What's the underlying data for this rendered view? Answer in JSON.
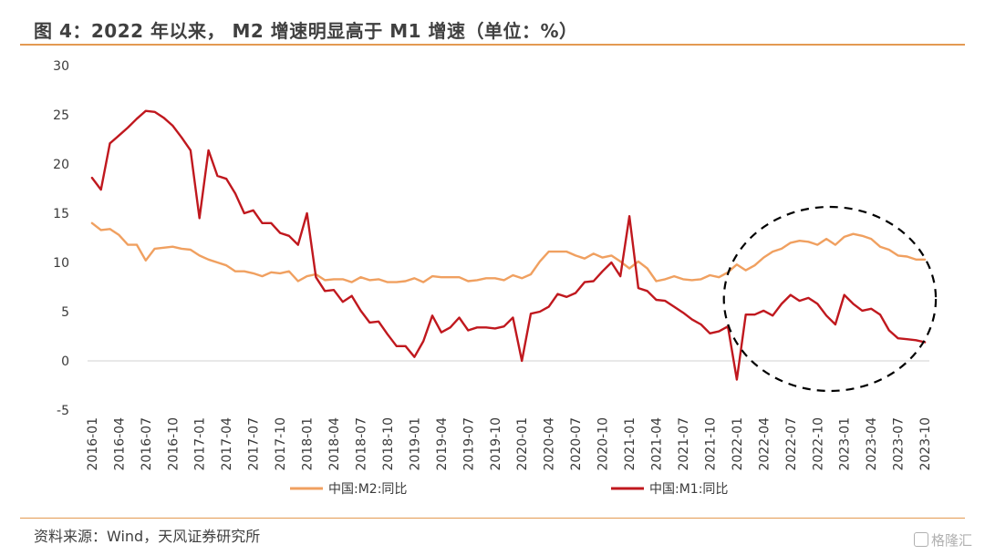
{
  "title": "图 4：2022 年以来， M2 增速明显高于 M1 增速（单位：%）",
  "source": "资料来源：Wind，天风证券研究所",
  "watermark": "格隆汇",
  "colors": {
    "m2": "#F0A060",
    "m1": "#C0181E",
    "accent": "#E39A52",
    "axis": "#d0d0d0",
    "circle": "#000000"
  },
  "chart_data": {
    "type": "line",
    "title": "",
    "xlabel": "",
    "ylabel": "",
    "ylim": [
      -5,
      30
    ],
    "yticks": [
      -5,
      0,
      5,
      10,
      15,
      20,
      25,
      30
    ],
    "grid": false,
    "legend_position": "bottom",
    "x": [
      "2016-01",
      "2016-02",
      "2016-03",
      "2016-04",
      "2016-05",
      "2016-06",
      "2016-07",
      "2016-08",
      "2016-09",
      "2016-10",
      "2016-11",
      "2016-12",
      "2017-01",
      "2017-02",
      "2017-03",
      "2017-04",
      "2017-05",
      "2017-06",
      "2017-07",
      "2017-08",
      "2017-09",
      "2017-10",
      "2017-11",
      "2017-12",
      "2018-01",
      "2018-02",
      "2018-03",
      "2018-04",
      "2018-05",
      "2018-06",
      "2018-07",
      "2018-08",
      "2018-09",
      "2018-10",
      "2018-11",
      "2018-12",
      "2019-01",
      "2019-02",
      "2019-03",
      "2019-04",
      "2019-05",
      "2019-06",
      "2019-07",
      "2019-08",
      "2019-09",
      "2019-10",
      "2019-11",
      "2019-12",
      "2020-01",
      "2020-02",
      "2020-03",
      "2020-04",
      "2020-05",
      "2020-06",
      "2020-07",
      "2020-08",
      "2020-09",
      "2020-10",
      "2020-11",
      "2020-12",
      "2021-01",
      "2021-02",
      "2021-03",
      "2021-04",
      "2021-05",
      "2021-06",
      "2021-07",
      "2021-08",
      "2021-09",
      "2021-10",
      "2021-11",
      "2021-12",
      "2022-01",
      "2022-02",
      "2022-03",
      "2022-04",
      "2022-05",
      "2022-06",
      "2022-07",
      "2022-08",
      "2022-09",
      "2022-10",
      "2022-11",
      "2022-12",
      "2023-01",
      "2023-02",
      "2023-03",
      "2023-04",
      "2023-05",
      "2023-06",
      "2023-07",
      "2023-08",
      "2023-09",
      "2023-10"
    ],
    "x_tick_labels": [
      "2016-01",
      "2016-04",
      "2016-07",
      "2016-10",
      "2017-01",
      "2017-04",
      "2017-07",
      "2017-10",
      "2018-01",
      "2018-04",
      "2018-07",
      "2018-10",
      "2019-01",
      "2019-04",
      "2019-07",
      "2019-10",
      "2020-01",
      "2020-04",
      "2020-07",
      "2020-10",
      "2021-01",
      "2021-04",
      "2021-07",
      "2021-10",
      "2022-01",
      "2022-04",
      "2022-07",
      "2022-10",
      "2023-01",
      "2023-04",
      "2023-07",
      "2023-10"
    ],
    "series": [
      {
        "name": "中国:M2:同比",
        "color": "#F0A060",
        "values": [
          14.0,
          13.3,
          13.4,
          12.8,
          11.8,
          11.8,
          10.2,
          11.4,
          11.5,
          11.6,
          11.4,
          11.3,
          10.7,
          10.3,
          10.0,
          9.7,
          9.1,
          9.1,
          8.9,
          8.6,
          9.0,
          8.9,
          9.1,
          8.1,
          8.6,
          8.8,
          8.2,
          8.3,
          8.3,
          8.0,
          8.5,
          8.2,
          8.3,
          8.0,
          8.0,
          8.1,
          8.4,
          8.0,
          8.6,
          8.5,
          8.5,
          8.5,
          8.1,
          8.2,
          8.4,
          8.4,
          8.2,
          8.7,
          8.4,
          8.8,
          10.1,
          11.1,
          11.1,
          11.1,
          10.7,
          10.4,
          10.9,
          10.5,
          10.7,
          10.1,
          9.4,
          10.1,
          9.4,
          8.1,
          8.3,
          8.6,
          8.3,
          8.2,
          8.3,
          8.7,
          8.5,
          9.0,
          9.8,
          9.2,
          9.7,
          10.5,
          11.1,
          11.4,
          12.0,
          12.2,
          12.1,
          11.8,
          12.4,
          11.8,
          12.6,
          12.9,
          12.7,
          12.4,
          11.6,
          11.3,
          10.7,
          10.6,
          10.3,
          10.3
        ]
      },
      {
        "name": "中国:M1:同比",
        "color": "#C0181E",
        "values": [
          18.6,
          17.4,
          22.1,
          22.9,
          23.7,
          24.6,
          25.4,
          25.3,
          24.7,
          23.9,
          22.7,
          21.4,
          14.5,
          21.4,
          18.8,
          18.5,
          17.0,
          15.0,
          15.3,
          14.0,
          14.0,
          13.0,
          12.7,
          11.8,
          15.0,
          8.5,
          7.1,
          7.2,
          6.0,
          6.6,
          5.1,
          3.9,
          4.0,
          2.7,
          1.5,
          1.5,
          0.4,
          2.0,
          4.6,
          2.9,
          3.4,
          4.4,
          3.1,
          3.4,
          3.4,
          3.3,
          3.5,
          4.4,
          0.0,
          4.8,
          5.0,
          5.5,
          6.8,
          6.5,
          6.9,
          8.0,
          8.1,
          9.1,
          10.0,
          8.6,
          14.7,
          7.4,
          7.1,
          6.2,
          6.1,
          5.5,
          4.9,
          4.2,
          3.7,
          2.8,
          3.0,
          3.5,
          -1.9,
          4.7,
          4.7,
          5.1,
          4.6,
          5.8,
          6.7,
          6.1,
          6.4,
          5.8,
          4.6,
          3.7,
          6.7,
          5.8,
          5.1,
          5.3,
          4.7,
          3.1,
          2.3,
          2.2,
          2.1,
          1.9
        ]
      }
    ],
    "annotations": [
      {
        "type": "dashed-ellipse",
        "highlight_from": "2022-02",
        "highlight_to": "2023-10"
      }
    ]
  }
}
